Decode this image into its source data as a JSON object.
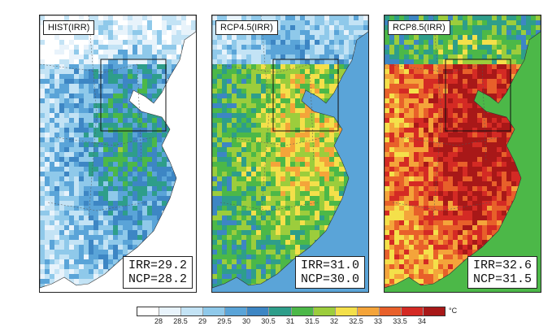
{
  "panels": [
    {
      "title": "HIST(IRR)",
      "stat1": "IRR=29.2",
      "stat2": "NCP=28.2",
      "intensity": 0.2
    },
    {
      "title": "RCP4.5(IRR)",
      "stat1": "IRR=31.0",
      "stat2": "NCP=30.0",
      "intensity": 0.55
    },
    {
      "title": "RCP8.5(IRR)",
      "stat1": "IRR=32.6",
      "stat2": "NCP=31.5",
      "intensity": 0.9
    }
  ],
  "colorbar": {
    "ticks": [
      "28",
      "28.5",
      "29",
      "29.5",
      "30",
      "30.5",
      "31",
      "31.5",
      "32",
      "32.5",
      "33",
      "33.5",
      "34"
    ],
    "colors": [
      "#ffffff",
      "#e8f3fb",
      "#c3e3f5",
      "#8fc9ea",
      "#5aa4d8",
      "#3d86c4",
      "#2e9e8a",
      "#4cb848",
      "#9ccd3c",
      "#f4e04a",
      "#f4a43a",
      "#e8602a",
      "#d42a24",
      "#a81818"
    ],
    "unit": "°C"
  }
}
